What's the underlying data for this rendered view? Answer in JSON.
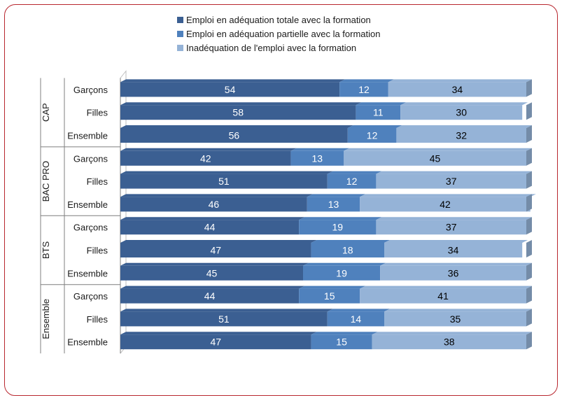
{
  "chart_data": {
    "type": "bar",
    "orientation": "horizontal",
    "stacked": true,
    "title": "",
    "xlabel": "",
    "ylabel": "",
    "xlim": [
      0,
      100
    ],
    "legend": "top",
    "groups": [
      "CAP",
      "BAC PRO",
      "BTS",
      "Ensemble"
    ],
    "categories": [
      "Garçons",
      "Filles",
      "Ensemble"
    ],
    "rows": [
      {
        "group": "CAP",
        "category": "Garçons",
        "values": [
          54,
          12,
          34
        ]
      },
      {
        "group": "CAP",
        "category": "Filles",
        "values": [
          58,
          11,
          30
        ]
      },
      {
        "group": "CAP",
        "category": "Ensemble",
        "values": [
          56,
          12,
          32
        ]
      },
      {
        "group": "BAC PRO",
        "category": "Garçons",
        "values": [
          42,
          13,
          45
        ]
      },
      {
        "group": "BAC PRO",
        "category": "Filles",
        "values": [
          51,
          12,
          37
        ]
      },
      {
        "group": "BAC PRO",
        "category": "Ensemble",
        "values": [
          46,
          13,
          42
        ]
      },
      {
        "group": "BTS",
        "category": "Garçons",
        "values": [
          44,
          19,
          37
        ]
      },
      {
        "group": "BTS",
        "category": "Filles",
        "values": [
          47,
          18,
          34
        ]
      },
      {
        "group": "BTS",
        "category": "Ensemble",
        "values": [
          45,
          19,
          36
        ]
      },
      {
        "group": "Ensemble",
        "category": "Garçons",
        "values": [
          44,
          15,
          41
        ]
      },
      {
        "group": "Ensemble",
        "category": "Filles",
        "values": [
          51,
          14,
          35
        ]
      },
      {
        "group": "Ensemble",
        "category": "Ensemble",
        "values": [
          47,
          15,
          38
        ]
      }
    ],
    "series": [
      {
        "name": "Emploi en adéquation totale avec la formation",
        "color": "#3b5f92"
      },
      {
        "name": "Emploi en adéquation partielle avec la formation",
        "color": "#4f81bd"
      },
      {
        "name": "Inadéquation de l'emploi avec la formation",
        "color": "#95b3d7"
      }
    ]
  }
}
